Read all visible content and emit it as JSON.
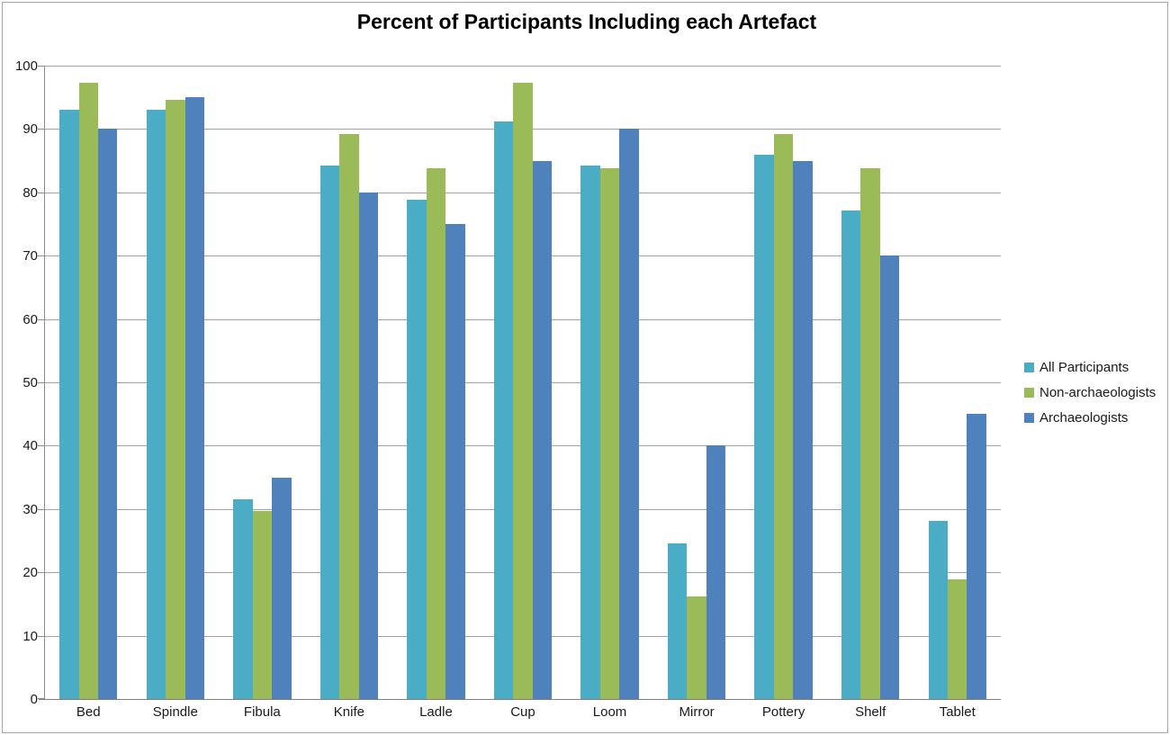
{
  "chart_data": {
    "type": "bar",
    "title": "Percent of Participants Including each Artefact",
    "categories": [
      "Bed",
      "Spindle",
      "Fibula",
      "Knife",
      "Ladle",
      "Cup",
      "Loom",
      "Mirror",
      "Pottery",
      "Shelf",
      "Tablet"
    ],
    "series": [
      {
        "name": "All Participants",
        "color": "#4BACC6",
        "values": [
          93.0,
          93.0,
          31.6,
          84.2,
          78.9,
          91.2,
          84.2,
          24.6,
          86.0,
          77.2,
          28.1
        ]
      },
      {
        "name": "Non-archaeologists",
        "color": "#9BBB59",
        "values": [
          97.3,
          94.6,
          29.7,
          89.2,
          83.8,
          97.3,
          83.8,
          16.2,
          89.2,
          83.8,
          18.9
        ]
      },
      {
        "name": "Archaeologists",
        "color": "#4F81BD",
        "values": [
          90.0,
          95.0,
          35.0,
          80.0,
          75.0,
          85.0,
          90.0,
          40.0,
          85.0,
          70.0,
          45.0
        ]
      }
    ],
    "xlabel": "",
    "ylabel": "",
    "ylim": [
      0,
      100
    ],
    "yticks": [
      0,
      10,
      20,
      30,
      40,
      50,
      60,
      70,
      80,
      90,
      100
    ],
    "grid": true,
    "legend_position": "right"
  },
  "style": {
    "gridline_color": "#a3a3a3",
    "axis_color": "#8c8c8c",
    "text_color": "#1a1a1a",
    "frame_border_color": "#a6a6a6",
    "background": "#ffffff"
  }
}
